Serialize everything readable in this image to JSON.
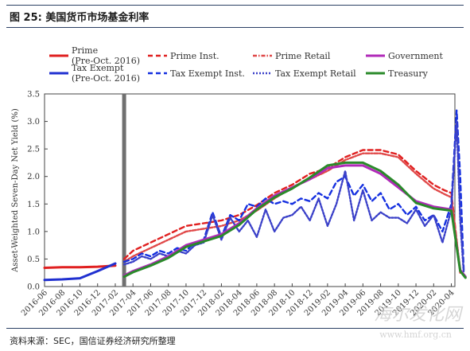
{
  "figure": {
    "title": "图 25:  美国货币市场基金利率",
    "source": "资料来源：SEC，国信证券经济研究所整理",
    "watermark_text": "海尔发化网",
    "watermark_url": "www.hmf.org.cn"
  },
  "chart_data": {
    "type": "line",
    "title": "",
    "xlabel": "",
    "ylabel": "Asset-Weighted Seven-Day Net Yield (%)",
    "ylim": [
      0,
      3.5
    ],
    "yticks": [
      "0.0",
      "0.5",
      "1.0",
      "1.5",
      "2.0",
      "2.5",
      "3.0",
      "3.5"
    ],
    "x_categories": [
      "2016-06",
      "2016-08",
      "2016-10",
      "2016-12",
      "2017-02",
      "2017-04",
      "2017-06",
      "2017-08",
      "2017-10",
      "2017-12",
      "2018-02",
      "2018-04",
      "2018-06",
      "2018-08",
      "2018-10",
      "2018-12",
      "2019-02",
      "2019-04",
      "2019-06",
      "2019-08",
      "2019-10",
      "2019-12",
      "2020-02",
      "2020-04"
    ],
    "vertical_marker": 4.5,
    "series": [
      {
        "name": "Prime (Pre-Oct. 2016)",
        "color": "#e02020",
        "style": "solid",
        "x": [
          0,
          1,
          2,
          3,
          4
        ],
        "values": [
          0.34,
          0.35,
          0.35,
          0.36,
          0.38
        ]
      },
      {
        "name": "Tax Exempt (Pre-Oct. 2016)",
        "color": "#2030d0",
        "style": "solid",
        "x": [
          0,
          1,
          2,
          3,
          4
        ],
        "values": [
          0.12,
          0.13,
          0.15,
          0.28,
          0.42
        ]
      },
      {
        "name": "Prime Inst.",
        "color": "#e02020",
        "style": "dash",
        "x": [
          4.5,
          5,
          6,
          7,
          8,
          9,
          10,
          11,
          12,
          13,
          14,
          15,
          16,
          17,
          18,
          19,
          20,
          21,
          22,
          22.6,
          23,
          23.5
        ],
        "values": [
          0.5,
          0.65,
          0.8,
          0.95,
          1.1,
          1.15,
          1.2,
          1.3,
          1.48,
          1.7,
          1.85,
          2.05,
          2.15,
          2.35,
          2.48,
          2.48,
          2.4,
          2.1,
          1.85,
          1.75,
          1.7,
          0.25
        ]
      },
      {
        "name": "Prime Retail",
        "color": "#e04848",
        "style": "dashdot",
        "x": [
          4.5,
          5,
          6,
          7,
          8,
          9,
          10,
          11,
          12,
          13,
          14,
          15,
          16,
          17,
          18,
          19,
          20,
          21,
          22,
          22.6,
          23,
          23.5
        ],
        "values": [
          0.45,
          0.55,
          0.7,
          0.85,
          1.0,
          1.05,
          1.1,
          1.2,
          1.38,
          1.6,
          1.8,
          1.95,
          2.1,
          2.3,
          2.42,
          2.42,
          2.35,
          2.05,
          1.78,
          1.68,
          1.62,
          0.3
        ]
      },
      {
        "name": "Tax Exempt Inst.",
        "color": "#1530e0",
        "style": "dash",
        "x": [
          4.5,
          5,
          5.5,
          6,
          6.5,
          7,
          7.5,
          8,
          8.5,
          9,
          9.5,
          10,
          10.5,
          11,
          11.5,
          12,
          12.5,
          13,
          13.5,
          14,
          14.5,
          15,
          15.5,
          16,
          16.5,
          17,
          17.5,
          18,
          18.5,
          19,
          19.5,
          20,
          20.5,
          21,
          21.5,
          22,
          22.5,
          23,
          23.3,
          23.5,
          23.7
        ],
        "values": [
          0.45,
          0.5,
          0.6,
          0.55,
          0.65,
          0.6,
          0.7,
          0.65,
          0.8,
          0.85,
          1.35,
          0.9,
          1.3,
          1.2,
          1.5,
          1.45,
          1.6,
          1.5,
          1.55,
          1.5,
          1.6,
          1.55,
          1.7,
          1.6,
          1.9,
          2.0,
          1.65,
          1.85,
          1.55,
          1.7,
          1.4,
          1.5,
          1.3,
          1.45,
          1.2,
          1.3,
          1.0,
          1.5,
          3.2,
          2.0,
          0.3
        ]
      },
      {
        "name": "Tax Exempt Retail",
        "color": "#3a40c8",
        "style": "dot",
        "x": [
          4.5,
          5,
          5.5,
          6,
          6.5,
          7,
          7.5,
          8,
          8.5,
          9,
          9.5,
          10,
          10.5,
          11,
          11.5,
          12,
          12.5,
          13,
          13.5,
          14,
          14.5,
          15,
          15.5,
          16,
          16.5,
          17,
          17.5,
          18,
          18.5,
          19,
          19.5,
          20,
          20.5,
          21,
          21.5,
          22,
          22.5,
          23,
          23.3,
          23.5,
          23.7
        ],
        "values": [
          0.4,
          0.45,
          0.55,
          0.5,
          0.6,
          0.55,
          0.65,
          0.6,
          0.75,
          0.8,
          1.3,
          0.85,
          1.25,
          1.0,
          1.2,
          0.9,
          1.4,
          1.0,
          1.25,
          1.3,
          1.45,
          1.2,
          1.6,
          1.1,
          1.5,
          2.1,
          1.2,
          1.75,
          1.2,
          1.35,
          1.25,
          1.25,
          1.15,
          1.4,
          1.1,
          1.3,
          0.8,
          1.4,
          3.0,
          1.2,
          0.25
        ]
      },
      {
        "name": "Government",
        "color": "#b02ab8",
        "style": "solid",
        "x": [
          4.5,
          5,
          6,
          7,
          8,
          9,
          10,
          11,
          12,
          13,
          14,
          15,
          16,
          17,
          18,
          19,
          20,
          21,
          22,
          23,
          23.5,
          23.8
        ],
        "values": [
          0.2,
          0.28,
          0.4,
          0.55,
          0.75,
          0.85,
          0.95,
          1.15,
          1.42,
          1.65,
          1.8,
          1.95,
          2.15,
          2.2,
          2.2,
          2.05,
          1.8,
          1.55,
          1.45,
          1.4,
          0.3,
          0.18
        ]
      },
      {
        "name": "Treasury",
        "color": "#2a8a2a",
        "style": "solid",
        "x": [
          4.5,
          5,
          6,
          7,
          8,
          9,
          10,
          11,
          12,
          13,
          14,
          15,
          16,
          17,
          18,
          19,
          20,
          21,
          22,
          23,
          23.5,
          23.8
        ],
        "values": [
          0.18,
          0.26,
          0.38,
          0.52,
          0.72,
          0.82,
          0.92,
          1.12,
          1.4,
          1.62,
          1.78,
          1.98,
          2.2,
          2.25,
          2.25,
          2.1,
          1.85,
          1.52,
          1.42,
          1.38,
          0.28,
          0.16
        ]
      }
    ],
    "legend": {
      "placement": "top",
      "entries": [
        {
          "key": "prime-pre",
          "text": "Prime",
          "sub": "(Pre-Oct. 2016)"
        },
        {
          "key": "prime-inst",
          "text": "Prime Inst."
        },
        {
          "key": "prime-retail",
          "text": "Prime Retail"
        },
        {
          "key": "government",
          "text": "Government"
        },
        {
          "key": "taxex-pre",
          "text": "Tax Exempt",
          "sub": "(Pre-Oct. 2016)"
        },
        {
          "key": "taxex-inst",
          "text": "Tax Exempt Inst."
        },
        {
          "key": "taxex-retail",
          "text": "Tax Exempt Retail"
        },
        {
          "key": "treasury",
          "text": "Treasury"
        }
      ]
    }
  }
}
